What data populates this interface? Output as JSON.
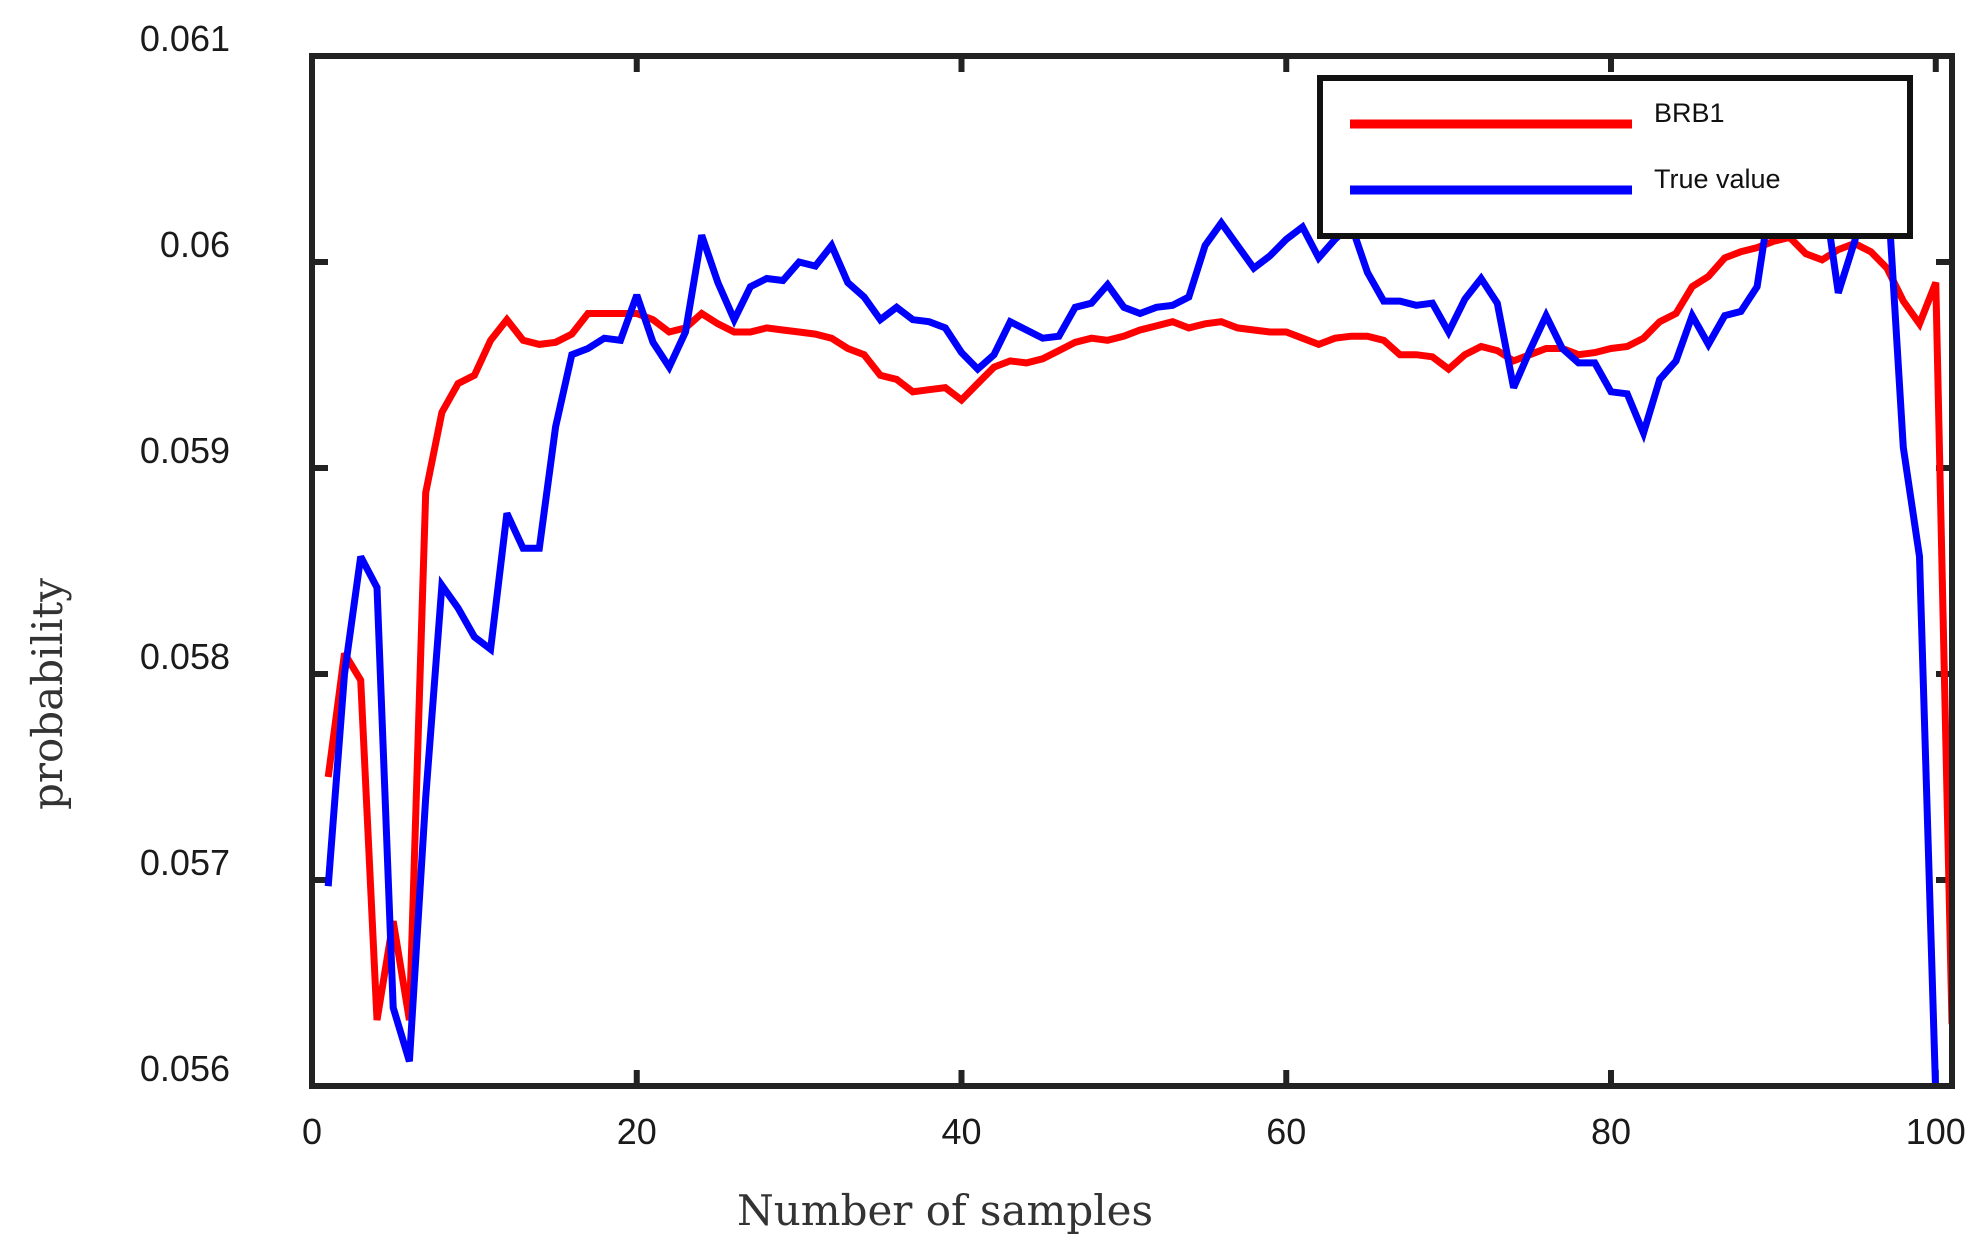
{
  "chart_data": {
    "type": "line",
    "title": "",
    "xlabel": "Number of samples",
    "ylabel": "probability",
    "xlim": [
      0,
      101
    ],
    "ylim": [
      0.056,
      0.061
    ],
    "xticks": [
      0,
      20,
      40,
      60,
      80,
      100
    ],
    "xtick_labels": [
      "0",
      "20",
      "40",
      "60",
      "80",
      "100"
    ],
    "yticks": [
      0.056,
      0.057,
      0.058,
      0.059,
      0.06,
      0.061
    ],
    "ytick_labels": [
      "0.056",
      "0.057",
      "0.058",
      "0.059",
      "0.06",
      "0.061"
    ],
    "grid": false,
    "legend_position": "top-right",
    "x": [
      1,
      2,
      3,
      4,
      5,
      6,
      7,
      8,
      9,
      10,
      11,
      12,
      13,
      14,
      15,
      16,
      17,
      18,
      19,
      20,
      21,
      22,
      23,
      24,
      25,
      26,
      27,
      28,
      29,
      30,
      31,
      32,
      33,
      34,
      35,
      36,
      37,
      38,
      39,
      40,
      41,
      42,
      43,
      44,
      45,
      46,
      47,
      48,
      49,
      50,
      51,
      52,
      53,
      54,
      55,
      56,
      57,
      58,
      59,
      60,
      61,
      62,
      63,
      64,
      65,
      66,
      67,
      68,
      69,
      70,
      71,
      72,
      73,
      74,
      75,
      76,
      77,
      78,
      79,
      80,
      81,
      82,
      83,
      84,
      85,
      86,
      87,
      88,
      89,
      90,
      91,
      92,
      93,
      94,
      95,
      96,
      97,
      98,
      99,
      100,
      101
    ],
    "series": [
      {
        "name": "BRB1",
        "color": "#ff0000",
        "values": [
          0.0575,
          0.0581,
          0.05797,
          0.05632,
          0.0568,
          0.05632,
          0.05888,
          0.05927,
          0.05941,
          0.05945,
          0.05962,
          0.05972,
          0.05962,
          0.0596,
          0.05961,
          0.05965,
          0.05975,
          0.05975,
          0.05975,
          0.05975,
          0.05972,
          0.05966,
          0.05968,
          0.05975,
          0.0597,
          0.05966,
          0.05966,
          0.05968,
          0.05967,
          0.05966,
          0.05965,
          0.05963,
          0.05958,
          0.05955,
          0.05945,
          0.05943,
          0.05937,
          0.05938,
          0.05939,
          0.05933,
          0.05941,
          0.05949,
          0.05952,
          0.05951,
          0.05953,
          0.05957,
          0.05961,
          0.05963,
          0.05962,
          0.05964,
          0.05967,
          0.05969,
          0.05971,
          0.05968,
          0.0597,
          0.05971,
          0.05968,
          0.05967,
          0.05966,
          0.05966,
          0.05963,
          0.0596,
          0.05963,
          0.05964,
          0.05964,
          0.05962,
          0.05955,
          0.05955,
          0.05954,
          0.05948,
          0.05955,
          0.05959,
          0.05957,
          0.05952,
          0.05955,
          0.05958,
          0.05958,
          0.05955,
          0.05956,
          0.05958,
          0.05959,
          0.05963,
          0.05971,
          0.05975,
          0.05988,
          0.05993,
          0.06002,
          0.06005,
          0.06007,
          0.0601,
          0.06012,
          0.06004,
          0.06001,
          0.06006,
          0.06009,
          0.06005,
          0.05997,
          0.05981,
          0.0597,
          0.0599,
          0.0563
        ]
      },
      {
        "name": "True value",
        "color": "#0000ff",
        "values": [
          0.05697,
          0.058,
          0.05857,
          0.05842,
          0.05638,
          0.05612,
          0.0574,
          0.05843,
          0.05832,
          0.05818,
          0.05812,
          0.05878,
          0.05861,
          0.05861,
          0.0592,
          0.05955,
          0.05958,
          0.05963,
          0.05962,
          0.05984,
          0.05961,
          0.05949,
          0.05966,
          0.06013,
          0.0599,
          0.05972,
          0.05988,
          0.05992,
          0.05991,
          0.06,
          0.05998,
          0.06008,
          0.0599,
          0.05983,
          0.05972,
          0.05978,
          0.05972,
          0.05971,
          0.05968,
          0.05956,
          0.05948,
          0.05955,
          0.05971,
          0.05967,
          0.05963,
          0.05964,
          0.05978,
          0.0598,
          0.05989,
          0.05978,
          0.05975,
          0.05978,
          0.05979,
          0.05983,
          0.06008,
          0.06019,
          0.06008,
          0.05997,
          0.06003,
          0.06011,
          0.06017,
          0.06002,
          0.06011,
          0.06018,
          0.05995,
          0.05981,
          0.05981,
          0.05979,
          0.0598,
          0.05966,
          0.05982,
          0.05992,
          0.0598,
          0.05939,
          0.05957,
          0.05974,
          0.05958,
          0.05951,
          0.05951,
          0.05937,
          0.05936,
          0.05917,
          0.05943,
          0.05952,
          0.05974,
          0.0596,
          0.05974,
          0.05976,
          0.05988,
          0.0604,
          0.0604,
          0.0604,
          0.0604,
          0.05985,
          0.0601,
          0.0604,
          0.0604,
          0.0591,
          0.05857,
          0.05595,
          0.05595
        ]
      }
    ]
  }
}
